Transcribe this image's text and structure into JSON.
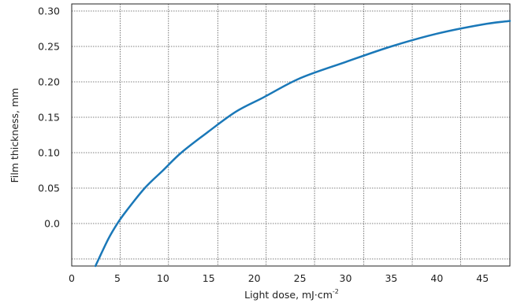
{
  "chart_data": {
    "type": "line",
    "xlabel": "Light dose, mJ·cm",
    "xlabel_superscript": "-2",
    "ylabel": "Film thickness, mm",
    "xlim": [
      0,
      48
    ],
    "ylim": [
      -0.06,
      0.31
    ],
    "x_ticks": [
      0,
      5,
      10,
      15,
      20,
      25,
      30,
      35,
      40,
      45
    ],
    "x_tick_labels": [
      "0",
      "5",
      "10",
      "15",
      "20",
      "25",
      "30",
      "35",
      "40",
      "45"
    ],
    "y_ticks": [
      0.0,
      0.05,
      0.1,
      0.15,
      0.2,
      0.25,
      0.3
    ],
    "y_tick_labels": [
      "0.0",
      "0.05",
      "0.10",
      "0.15",
      "0.20",
      "0.25",
      "0.30"
    ],
    "x_grid_lines": [
      5.3,
      10.6,
      16,
      21.3,
      26.6,
      32,
      37.3,
      42.6
    ],
    "y_grid_lines": [
      -0.05,
      0.0,
      0.05,
      0.1,
      0.15,
      0.2,
      0.25,
      0.3
    ],
    "grid": true,
    "series": [
      {
        "color": "#1a78b8",
        "x": [
          2.6,
          4,
          5,
          6,
          8,
          10,
          12,
          15,
          18,
          21,
          25,
          30,
          35,
          40,
          45,
          48
        ],
        "y": [
          -0.06,
          -0.022,
          0.0,
          0.018,
          0.05,
          0.075,
          0.1,
          0.13,
          0.158,
          0.178,
          0.205,
          0.228,
          0.25,
          0.268,
          0.281,
          0.286
        ]
      }
    ]
  }
}
